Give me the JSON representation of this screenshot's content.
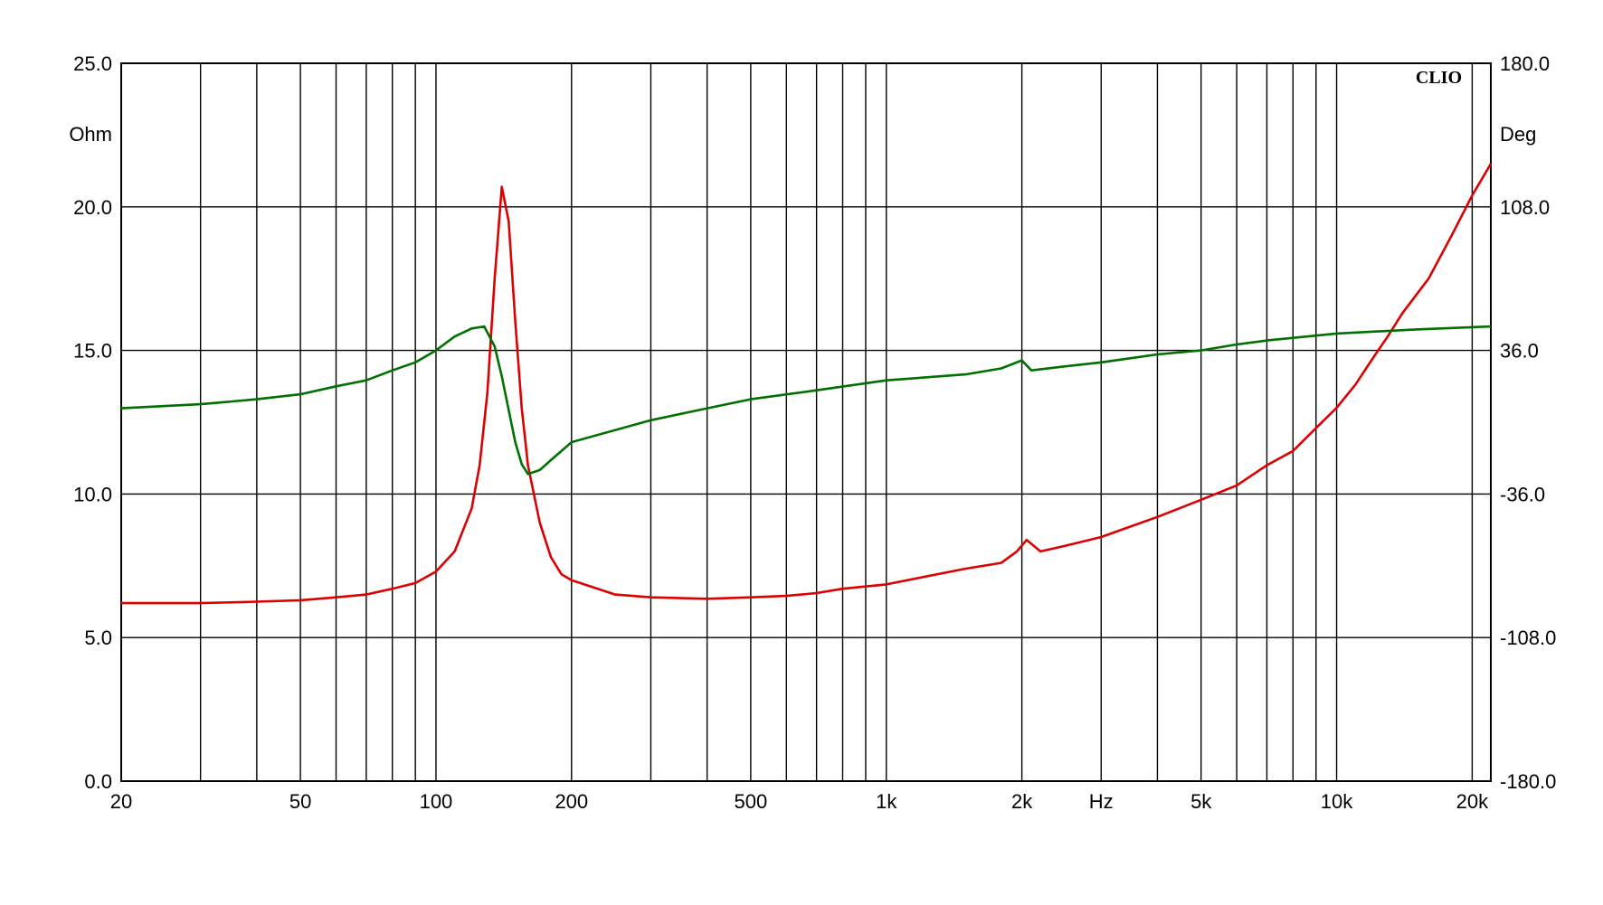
{
  "chart_data": {
    "type": "line",
    "brand": "CLIO",
    "x_scale": "log",
    "xlim": [
      20,
      22000
    ],
    "x_unit": "Hz",
    "x_ticks": [
      {
        "value": 20,
        "label": "20"
      },
      {
        "value": 50,
        "label": "50"
      },
      {
        "value": 100,
        "label": "100"
      },
      {
        "value": 200,
        "label": "200"
      },
      {
        "value": 500,
        "label": "500"
      },
      {
        "value": 1000,
        "label": "1k"
      },
      {
        "value": 2000,
        "label": "2k"
      },
      {
        "value": 5000,
        "label": "5k"
      },
      {
        "value": 10000,
        "label": "10k"
      },
      {
        "value": 20000,
        "label": "20k"
      }
    ],
    "y_left": {
      "unit": "Ohm",
      "ylim": [
        0,
        25
      ],
      "ticks": [
        "0.0",
        "5.0",
        "10.0",
        "15.0",
        "20.0",
        "25.0"
      ]
    },
    "y_right": {
      "unit": "Deg",
      "ylim": [
        -180,
        180
      ],
      "ticks": [
        "-180.0",
        "-108.0",
        "-36.0",
        "36.0",
        "108.0",
        "180.0"
      ]
    },
    "grid": true,
    "series": [
      {
        "axis": "left",
        "color": "#dd0000",
        "points": [
          [
            20,
            6.2
          ],
          [
            30,
            6.2
          ],
          [
            40,
            6.25
          ],
          [
            50,
            6.3
          ],
          [
            60,
            6.4
          ],
          [
            70,
            6.5
          ],
          [
            80,
            6.7
          ],
          [
            90,
            6.9
          ],
          [
            100,
            7.3
          ],
          [
            110,
            8.0
          ],
          [
            120,
            9.5
          ],
          [
            125,
            11.0
          ],
          [
            130,
            13.5
          ],
          [
            135,
            17.5
          ],
          [
            140,
            20.7
          ],
          [
            145,
            19.5
          ],
          [
            150,
            16.0
          ],
          [
            155,
            13.0
          ],
          [
            160,
            11.0
          ],
          [
            170,
            9.0
          ],
          [
            180,
            7.8
          ],
          [
            190,
            7.2
          ],
          [
            200,
            7.0
          ],
          [
            250,
            6.5
          ],
          [
            300,
            6.4
          ],
          [
            400,
            6.35
          ],
          [
            500,
            6.4
          ],
          [
            600,
            6.45
          ],
          [
            700,
            6.55
          ],
          [
            800,
            6.7
          ],
          [
            1000,
            6.85
          ],
          [
            1200,
            7.1
          ],
          [
            1500,
            7.4
          ],
          [
            1800,
            7.6
          ],
          [
            1950,
            8.0
          ],
          [
            2050,
            8.4
          ],
          [
            2200,
            8.0
          ],
          [
            2500,
            8.2
          ],
          [
            3000,
            8.5
          ],
          [
            4000,
            9.2
          ],
          [
            5000,
            9.8
          ],
          [
            6000,
            10.3
          ],
          [
            7000,
            11.0
          ],
          [
            8000,
            11.5
          ],
          [
            9000,
            12.3
          ],
          [
            10000,
            13.0
          ],
          [
            11000,
            13.8
          ],
          [
            12000,
            14.7
          ],
          [
            13000,
            15.5
          ],
          [
            14000,
            16.3
          ],
          [
            16000,
            17.5
          ],
          [
            18000,
            19.0
          ],
          [
            20000,
            20.4
          ],
          [
            22000,
            21.5
          ]
        ]
      },
      {
        "axis": "right",
        "color": "#007000",
        "points": [
          [
            20,
            7.0
          ],
          [
            30,
            9.0
          ],
          [
            40,
            11.5
          ],
          [
            50,
            14.0
          ],
          [
            60,
            18.0
          ],
          [
            70,
            21.0
          ],
          [
            80,
            26.0
          ],
          [
            90,
            30.0
          ],
          [
            100,
            36.0
          ],
          [
            110,
            43.0
          ],
          [
            120,
            47.0
          ],
          [
            128,
            48.0
          ],
          [
            135,
            38.0
          ],
          [
            140,
            23.0
          ],
          [
            150,
            -10.0
          ],
          [
            155,
            -21.0
          ],
          [
            160,
            -26.0
          ],
          [
            170,
            -24.0
          ],
          [
            180,
            -19.0
          ],
          [
            200,
            -10.0
          ],
          [
            300,
            1.0
          ],
          [
            400,
            7.0
          ],
          [
            500,
            11.5
          ],
          [
            700,
            16.0
          ],
          [
            1000,
            21.0
          ],
          [
            1500,
            24.0
          ],
          [
            1800,
            27.0
          ],
          [
            2000,
            31.0
          ],
          [
            2100,
            26.0
          ],
          [
            2500,
            28.0
          ],
          [
            3000,
            30.0
          ],
          [
            4000,
            34.0
          ],
          [
            5000,
            36.0
          ],
          [
            6000,
            39.0
          ],
          [
            7000,
            41.0
          ],
          [
            10000,
            44.5
          ],
          [
            15000,
            46.5
          ],
          [
            22000,
            48.0
          ]
        ]
      }
    ]
  }
}
